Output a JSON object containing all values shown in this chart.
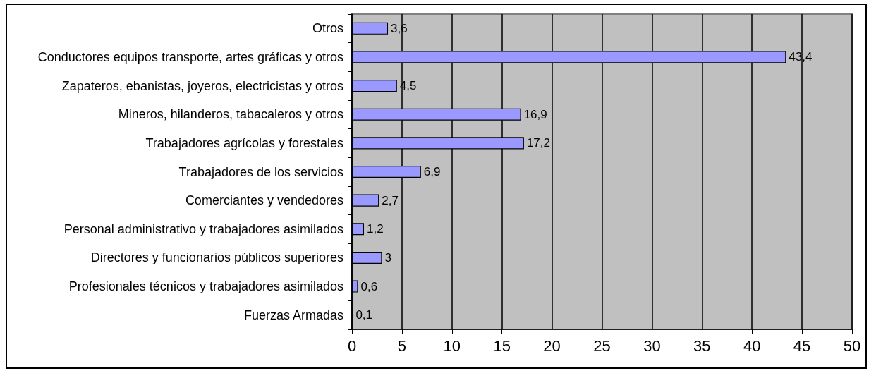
{
  "chart_data": {
    "type": "bar",
    "orientation": "horizontal",
    "categories": [
      "Otros",
      "Conductores equipos transporte, artes gráficas y otros",
      "Zapateros, ebanistas, joyeros, electricistas y otros",
      "Mineros, hilanderos, tabacaleros y otros",
      "Trabajadores agrícolas y forestales",
      "Trabajadores de los servicios",
      "Comerciantes y vendedores",
      "Personal administrativo y trabajadores asimilados",
      "Directores y funcionarios públicos superiores",
      "Profesionales técnicos y trabajadores asimilados",
      "Fuerzas Armadas"
    ],
    "values": [
      3.6,
      43.4,
      4.5,
      16.9,
      17.2,
      6.9,
      2.7,
      1.2,
      3,
      0.6,
      0.1
    ],
    "value_labels": [
      "3,6",
      "43,4",
      "4,5",
      "16,9",
      "17,2",
      "6,9",
      "2,7",
      "1,2",
      "3",
      "0,6",
      "0,1"
    ],
    "color": "#9999ff",
    "xlim": [
      0,
      50
    ],
    "xticks": [
      0,
      5,
      10,
      15,
      20,
      25,
      30,
      35,
      40,
      45,
      50
    ],
    "grid": "x"
  }
}
